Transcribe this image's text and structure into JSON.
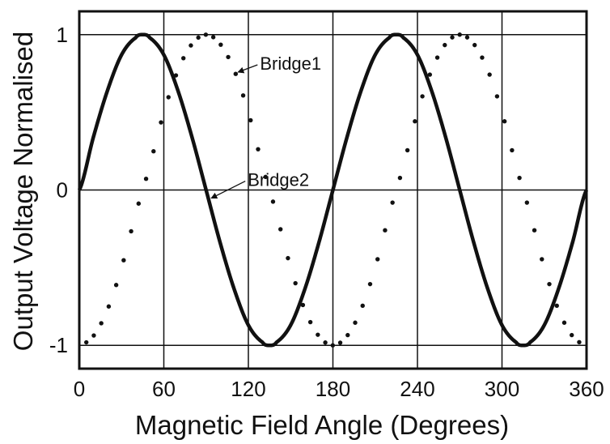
{
  "chart_data": {
    "type": "line",
    "title": "",
    "xlabel": "Magnetic Field Angle (Degrees)",
    "ylabel": "Output Voltage Normalised",
    "xlim": [
      0,
      360
    ],
    "ylim": [
      -1.15,
      1.15
    ],
    "x_ticks": [
      0,
      60,
      120,
      180,
      240,
      300,
      360
    ],
    "y_ticks": [
      -1,
      0,
      1
    ],
    "x_tick_labels": [
      "0",
      "60",
      "120",
      "180",
      "240",
      "300",
      "360"
    ],
    "y_tick_labels": [
      "-1",
      "0",
      "1"
    ],
    "grid": true,
    "x": [
      0,
      10,
      20,
      30,
      40,
      45,
      50,
      60,
      70,
      80,
      90,
      100,
      110,
      120,
      130,
      135,
      140,
      150,
      160,
      170,
      180,
      190,
      200,
      210,
      220,
      225,
      230,
      240,
      250,
      260,
      270,
      280,
      290,
      300,
      310,
      315,
      320,
      330,
      340,
      350,
      360
    ],
    "series": [
      {
        "name": "Bridge1",
        "style": "dotted",
        "color": "#111111",
        "values": [
          -1.0,
          -0.94,
          -0.77,
          -0.5,
          -0.17,
          0.0,
          0.17,
          0.5,
          0.77,
          0.94,
          1.0,
          0.94,
          0.77,
          0.5,
          0.17,
          0.0,
          -0.17,
          -0.5,
          -0.77,
          -0.94,
          -1.0,
          -0.94,
          -0.77,
          -0.5,
          -0.17,
          0.0,
          0.17,
          0.5,
          0.77,
          0.94,
          1.0,
          0.94,
          0.77,
          0.5,
          0.17,
          0.0,
          -0.17,
          -0.5,
          -0.77,
          -0.94,
          -1.0
        ]
      },
      {
        "name": "Bridge2",
        "style": "solid",
        "color": "#111111",
        "values": [
          0.0,
          0.34,
          0.64,
          0.87,
          0.98,
          1.0,
          0.98,
          0.87,
          0.64,
          0.34,
          0.0,
          -0.34,
          -0.64,
          -0.87,
          -0.98,
          -1.0,
          -0.98,
          -0.87,
          -0.64,
          -0.34,
          0.0,
          0.34,
          0.64,
          0.87,
          0.98,
          1.0,
          0.98,
          0.87,
          0.64,
          0.34,
          0.0,
          -0.34,
          -0.64,
          -0.87,
          -0.98,
          -1.0,
          -0.98,
          -0.87,
          -0.64,
          -0.34,
          0.0
        ]
      }
    ],
    "annotations": [
      {
        "text": "Bridge1",
        "series": "Bridge1",
        "at_x": 111
      },
      {
        "text": "Bridge2",
        "series": "Bridge2",
        "at_x": 92
      }
    ]
  }
}
